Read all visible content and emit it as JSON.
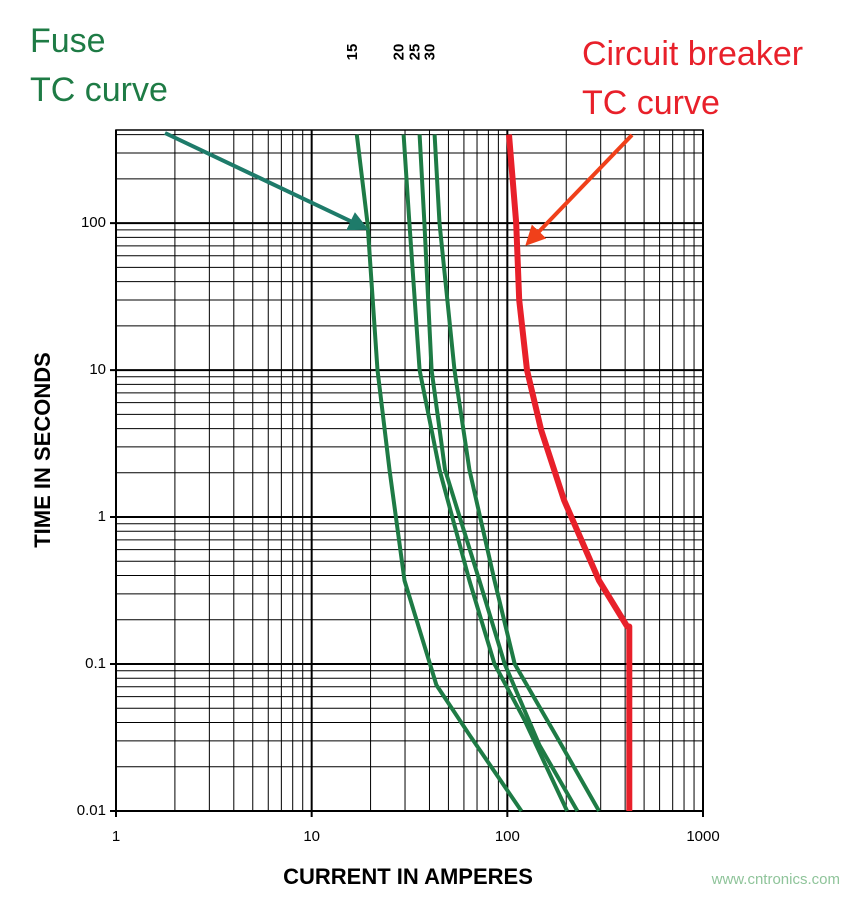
{
  "chart_data": {
    "type": "line",
    "xlabel": "CURRENT IN AMPERES",
    "ylabel": "TIME IN SECONDS",
    "log_x": true,
    "log_y": true,
    "grid": true,
    "xlim": [
      1,
      1000
    ],
    "ylim": [
      0.01,
      430
    ],
    "xticks": [
      1,
      10,
      100,
      1000
    ],
    "yticks": [
      0.01,
      0.1,
      1,
      10,
      100
    ],
    "annotations": [
      "Fuse",
      "TC curve",
      "Circuit breaker",
      "TC curve"
    ],
    "watermark": "www.cntronics.com",
    "series": [
      {
        "name": "15",
        "color": "#1e7b45",
        "x": [
          17,
          19.3,
          21.7,
          25,
          29.8,
          43.4,
          64,
          118
        ],
        "values": [
          400,
          100,
          10,
          2.1,
          0.37,
          0.072,
          0.033,
          0.01
        ]
      },
      {
        "name": "20",
        "color": "#1e7b45",
        "x": [
          29.5,
          31.6,
          35.6,
          45,
          64,
          86,
          122,
          202
        ],
        "values": [
          400,
          100,
          10,
          2.1,
          0.37,
          0.1,
          0.042,
          0.01
        ]
      },
      {
        "name": "25",
        "color": "#1e7b45",
        "x": [
          35.6,
          37.7,
          41,
          48,
          72,
          97,
          146,
          228
        ],
        "values": [
          400,
          100,
          10,
          2.1,
          0.37,
          0.1,
          0.028,
          0.01
        ]
      },
      {
        "name": "30",
        "color": "#1e7b45",
        "x": [
          42.5,
          45,
          53.7,
          64,
          86,
          109,
          184,
          294
        ],
        "values": [
          400,
          100,
          10,
          2.1,
          0.37,
          0.1,
          0.03,
          0.01
        ]
      },
      {
        "color": "#e8202a",
        "x": [
          102,
          111,
          115,
          126,
          149,
          195,
          294,
          410,
          420,
          420
        ],
        "values": [
          400,
          100,
          30,
          10,
          3.9,
          1.3,
          0.37,
          0.18,
          0.18,
          0.01
        ]
      }
    ]
  }
}
